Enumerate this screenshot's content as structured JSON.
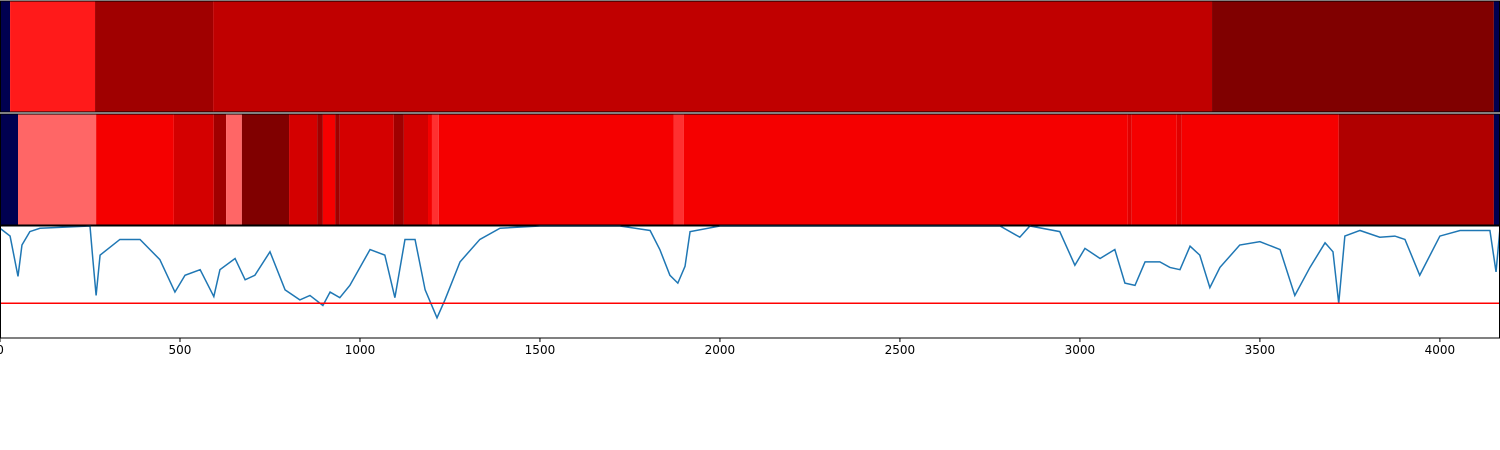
{
  "chart_data": [
    {
      "type": "segment",
      "xlim": [
        0,
        4167
      ],
      "segments": [
        {
          "start": 0,
          "end": 28,
          "color": "#000050"
        },
        {
          "start": 28,
          "end": 264,
          "color": "#ff1a1a"
        },
        {
          "start": 264,
          "end": 592,
          "color": "#a00000"
        },
        {
          "start": 592,
          "end": 3367,
          "color": "#c00000"
        },
        {
          "start": 3367,
          "end": 4150,
          "color": "#800000"
        },
        {
          "start": 4150,
          "end": 4167,
          "color": "#000050"
        }
      ]
    },
    {
      "type": "segment",
      "xlim": [
        0,
        4167
      ],
      "segments": [
        {
          "start": 0,
          "end": 50,
          "color": "#000050"
        },
        {
          "start": 50,
          "end": 267,
          "color": "#ff6666"
        },
        {
          "start": 267,
          "end": 483,
          "color": "#f50000"
        },
        {
          "start": 483,
          "end": 594,
          "color": "#d40000"
        },
        {
          "start": 594,
          "end": 628,
          "color": "#a00000"
        },
        {
          "start": 628,
          "end": 672,
          "color": "#ff6666"
        },
        {
          "start": 672,
          "end": 803,
          "color": "#800000"
        },
        {
          "start": 803,
          "end": 881,
          "color": "#d40000"
        },
        {
          "start": 881,
          "end": 897,
          "color": "#a00000"
        },
        {
          "start": 897,
          "end": 931,
          "color": "#f50000"
        },
        {
          "start": 931,
          "end": 944,
          "color": "#a00000"
        },
        {
          "start": 944,
          "end": 1094,
          "color": "#d40000"
        },
        {
          "start": 1094,
          "end": 1122,
          "color": "#a00000"
        },
        {
          "start": 1122,
          "end": 1189,
          "color": "#d40000"
        },
        {
          "start": 1189,
          "end": 1200,
          "color": "#f50000"
        },
        {
          "start": 1200,
          "end": 1219,
          "color": "#ff3030"
        },
        {
          "start": 1219,
          "end": 1872,
          "color": "#f50000"
        },
        {
          "start": 1872,
          "end": 1900,
          "color": "#ff3030"
        },
        {
          "start": 1900,
          "end": 3133,
          "color": "#f50000"
        },
        {
          "start": 3133,
          "end": 3144,
          "color": "#e00000"
        },
        {
          "start": 3144,
          "end": 3269,
          "color": "#f50000"
        },
        {
          "start": 3269,
          "end": 3283,
          "color": "#e00000"
        },
        {
          "start": 3283,
          "end": 3719,
          "color": "#f50000"
        },
        {
          "start": 3719,
          "end": 4150,
          "color": "#b00000"
        },
        {
          "start": 4150,
          "end": 4167,
          "color": "#000050"
        }
      ]
    },
    {
      "type": "line",
      "xlim": [
        0,
        4167
      ],
      "ylim": [
        0,
        1
      ],
      "xticks": [
        0,
        500,
        1000,
        1500,
        2000,
        2500,
        3000,
        3500,
        4000
      ],
      "hline": 0.31,
      "hline_color": "#ff0000",
      "series": [
        {
          "color": "#1f77b4",
          "x": [
            0,
            28,
            50,
            61,
            83,
            111,
            250,
            258,
            267,
            278,
            333,
            389,
            444,
            486,
            514,
            556,
            594,
            611,
            653,
            681,
            708,
            750,
            792,
            833,
            861,
            897,
            917,
            944,
            972,
            1028,
            1069,
            1097,
            1125,
            1153,
            1181,
            1214,
            1236,
            1278,
            1333,
            1389,
            1500,
            1722,
            1806,
            1833,
            1861,
            1883,
            1903,
            1917,
            2000,
            2778,
            2833,
            2861,
            2944,
            2986,
            3014,
            3056,
            3097,
            3125,
            3153,
            3181,
            3222,
            3250,
            3278,
            3306,
            3333,
            3361,
            3389,
            3444,
            3500,
            3556,
            3597,
            3639,
            3681,
            3703,
            3719,
            3736,
            3778,
            3833,
            3875,
            3903,
            3944,
            4000,
            4056,
            4139,
            4156,
            4167
          ],
          "values": [
            0.98,
            0.91,
            0.55,
            0.83,
            0.95,
            0.98,
            1.0,
            0.7,
            0.38,
            0.74,
            0.88,
            0.88,
            0.7,
            0.41,
            0.56,
            0.61,
            0.37,
            0.61,
            0.71,
            0.52,
            0.56,
            0.77,
            0.43,
            0.34,
            0.38,
            0.29,
            0.41,
            0.36,
            0.47,
            0.79,
            0.74,
            0.36,
            0.88,
            0.88,
            0.43,
            0.18,
            0.34,
            0.68,
            0.88,
            0.98,
            1.0,
            1.0,
            0.96,
            0.79,
            0.56,
            0.49,
            0.64,
            0.95,
            1.0,
            1.0,
            0.9,
            1.0,
            0.95,
            0.65,
            0.8,
            0.71,
            0.79,
            0.49,
            0.47,
            0.68,
            0.68,
            0.63,
            0.61,
            0.82,
            0.74,
            0.45,
            0.63,
            0.83,
            0.86,
            0.79,
            0.38,
            0.63,
            0.85,
            0.77,
            0.31,
            0.91,
            0.96,
            0.9,
            0.91,
            0.88,
            0.56,
            0.91,
            0.96,
            0.96,
            0.59,
            0.98
          ]
        }
      ]
    }
  ]
}
